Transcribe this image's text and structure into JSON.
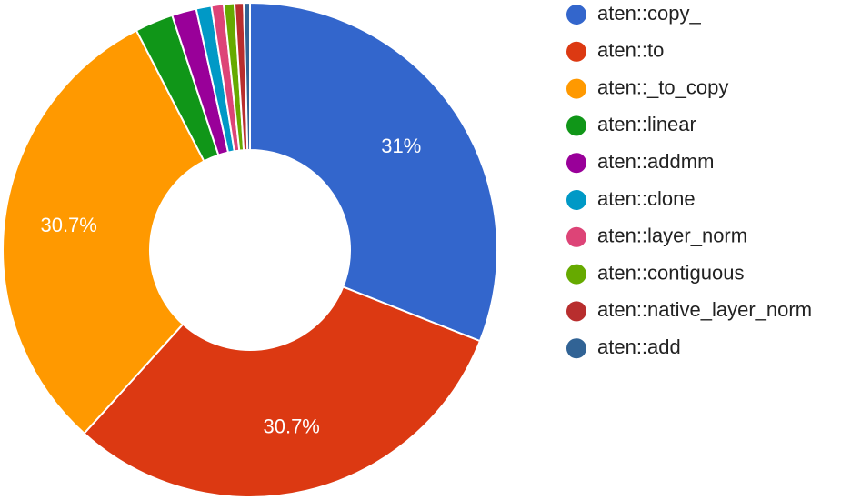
{
  "chart_data": {
    "type": "pie",
    "donut": true,
    "title": "",
    "legend_position": "right",
    "slices": [
      {
        "label": "aten::copy_",
        "value": 31.0,
        "display": "31%",
        "color": "#3366cc"
      },
      {
        "label": "aten::to",
        "value": 30.7,
        "display": "30.7%",
        "color": "#dc3912"
      },
      {
        "label": "aten::_to_copy",
        "value": 30.7,
        "display": "30.7%",
        "color": "#ff9900"
      },
      {
        "label": "aten::linear",
        "value": 2.5,
        "display": "",
        "color": "#109618"
      },
      {
        "label": "aten::addmm",
        "value": 1.6,
        "display": "",
        "color": "#990099"
      },
      {
        "label": "aten::clone",
        "value": 1.0,
        "display": "",
        "color": "#0099c6"
      },
      {
        "label": "aten::layer_norm",
        "value": 0.8,
        "display": "",
        "color": "#dd4477"
      },
      {
        "label": "aten::contiguous",
        "value": 0.7,
        "display": "",
        "color": "#66aa00"
      },
      {
        "label": "aten::native_layer_norm",
        "value": 0.6,
        "display": "",
        "color": "#b82e2e"
      },
      {
        "label": "aten::add",
        "value": 0.4,
        "display": "",
        "color": "#316395"
      }
    ]
  }
}
